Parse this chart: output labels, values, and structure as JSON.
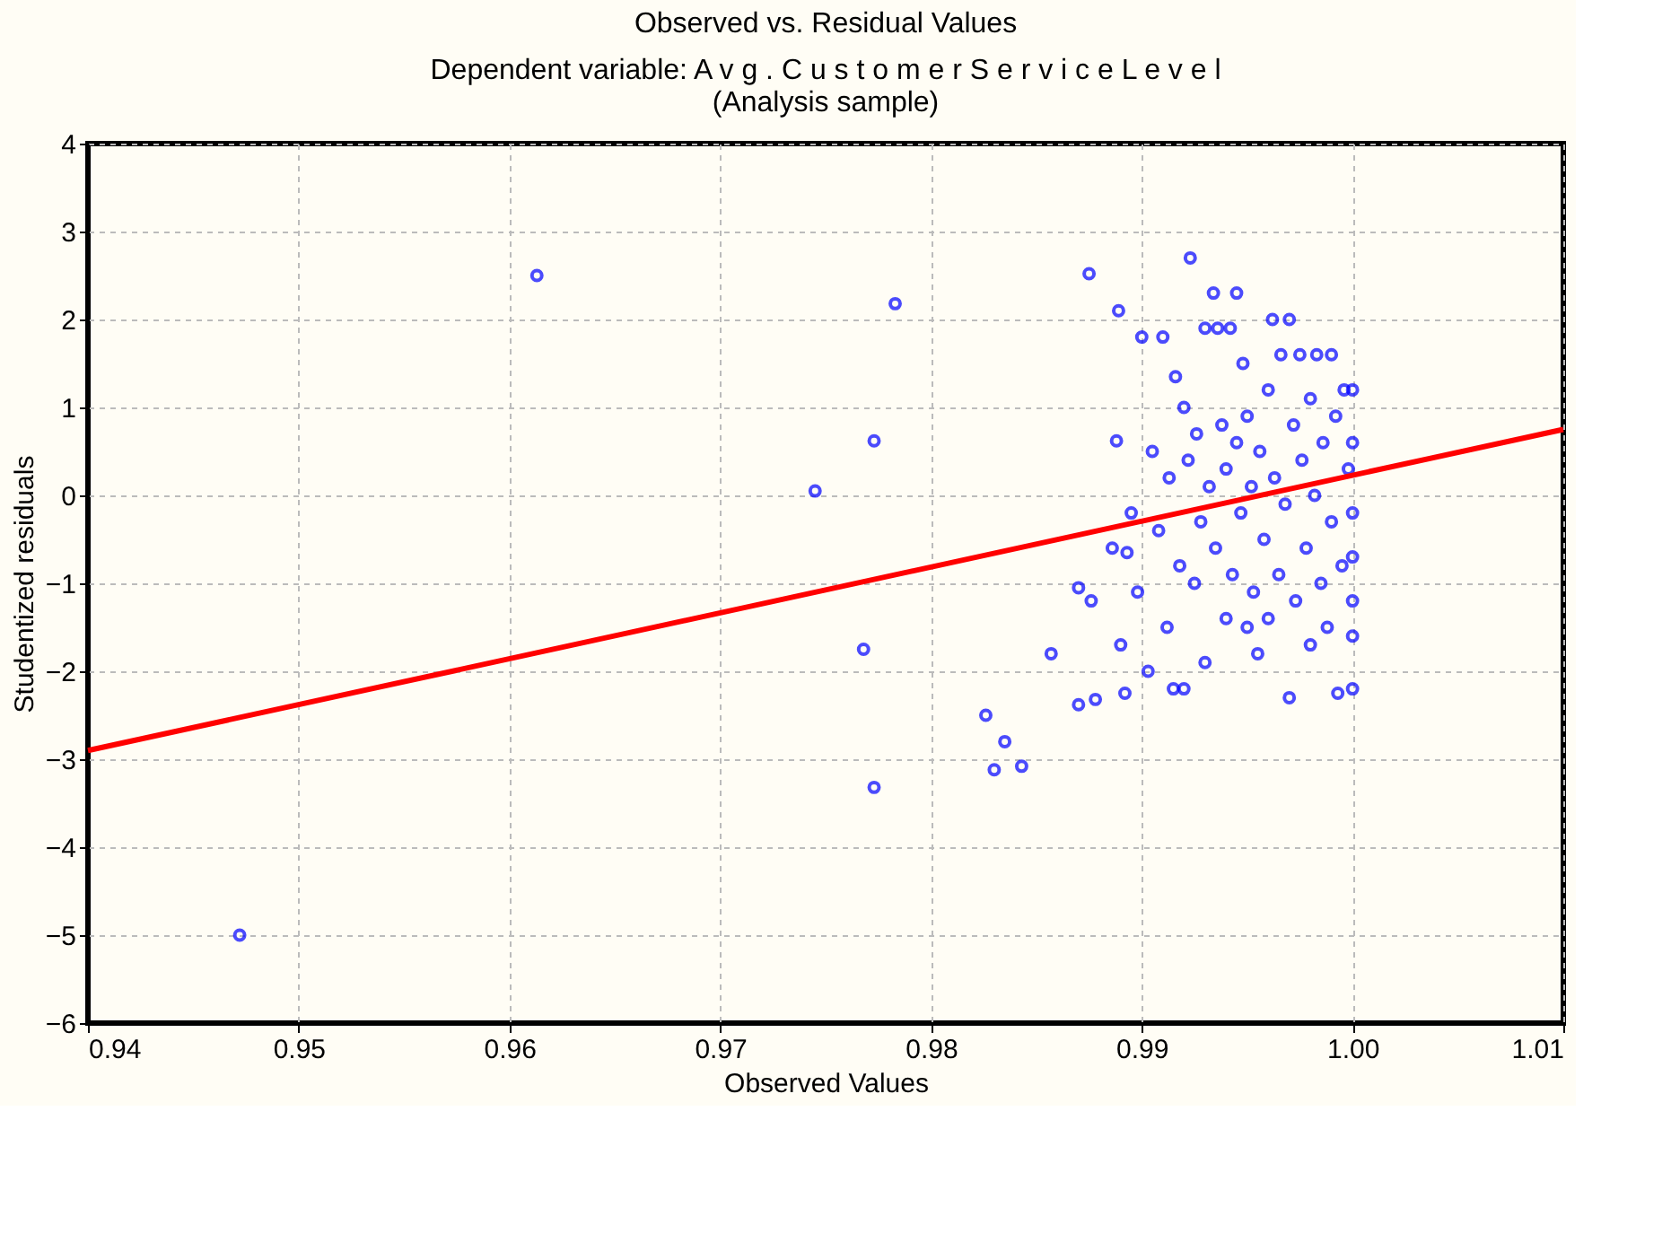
{
  "chart_data": {
    "type": "scatter",
    "title": "Observed vs. Residual Values",
    "subtitle": [
      "Dependent variable: A v g .  C u s t o m e r  S e r v i c e  L e v e l",
      "(Analysis sample)"
    ],
    "xlabel": "Observed Values",
    "ylabel": "Studentized residuals",
    "xlim": [
      0.94,
      1.01
    ],
    "xticks": [
      {
        "value": 0.94,
        "label": "0.94"
      },
      {
        "value": 0.95,
        "label": "0.95"
      },
      {
        "value": 0.96,
        "label": "0.96"
      },
      {
        "value": 0.97,
        "label": "0.97"
      },
      {
        "value": 0.98,
        "label": "0.98"
      },
      {
        "value": 0.99,
        "label": "0.99"
      },
      {
        "value": 1.0,
        "label": "1.00"
      },
      {
        "value": 1.01,
        "label": "1.01"
      }
    ],
    "ylim": [
      -6,
      4
    ],
    "yticks": [
      -6,
      -5,
      -4,
      -3,
      -2,
      -1,
      0,
      1,
      2,
      3,
      4
    ],
    "grid": true,
    "series": [
      {
        "color": "#0000ff",
        "marker": "circle",
        "x": [
          0.9472,
          0.9613,
          0.9745,
          0.9768,
          0.9773,
          0.9773,
          0.9783,
          0.9826,
          0.983,
          0.9835,
          0.9843,
          0.9857,
          0.987,
          0.987,
          0.9875,
          0.9876,
          0.9878,
          0.9886,
          0.9888,
          0.9889,
          0.989,
          0.9892,
          0.9893,
          0.9895,
          0.9898,
          0.99,
          0.9903,
          0.9905,
          0.9908,
          0.991,
          0.9912,
          0.9913,
          0.9915,
          0.9916,
          0.9918,
          0.992,
          0.992,
          0.9922,
          0.9923,
          0.9925,
          0.9926,
          0.9928,
          0.993,
          0.993,
          0.9932,
          0.9934,
          0.9935,
          0.9936,
          0.9938,
          0.994,
          0.994,
          0.9942,
          0.9943,
          0.9945,
          0.9945,
          0.9947,
          0.9948,
          0.995,
          0.995,
          0.9952,
          0.9953,
          0.9955,
          0.9956,
          0.9958,
          0.996,
          0.996,
          0.9962,
          0.9963,
          0.9965,
          0.9966,
          0.9968,
          0.997,
          0.997,
          0.9972,
          0.9973,
          0.9975,
          0.9976,
          0.9978,
          0.998,
          0.998,
          0.9982,
          0.9983,
          0.9985,
          0.9986,
          0.9988,
          0.999,
          0.999,
          0.9992,
          0.9993,
          0.9995,
          0.9996,
          0.9998,
          1.0,
          1.0,
          1.0,
          1.0,
          1.0,
          1.0,
          1.0
        ],
        "values": [
          -5.0,
          2.5,
          0.05,
          -1.75,
          0.62,
          -3.32,
          2.18,
          -2.5,
          -3.12,
          -2.8,
          -3.08,
          -1.8,
          -2.38,
          -1.05,
          2.52,
          -1.2,
          -2.32,
          -0.6,
          0.62,
          2.1,
          -1.7,
          -2.25,
          -0.65,
          -0.2,
          -1.1,
          1.8,
          -2.0,
          0.5,
          -0.4,
          1.8,
          -1.5,
          0.2,
          -2.2,
          1.35,
          -0.8,
          1.0,
          -2.2,
          0.4,
          2.7,
          -1.0,
          0.7,
          -0.3,
          -1.9,
          1.9,
          0.1,
          2.3,
          -0.6,
          1.9,
          0.8,
          -1.4,
          0.3,
          1.9,
          -0.9,
          2.3,
          0.6,
          -0.2,
          1.5,
          -1.5,
          0.9,
          0.1,
          -1.1,
          -1.8,
          0.5,
          -0.5,
          1.2,
          -1.4,
          2.0,
          0.2,
          -0.9,
          1.6,
          -0.1,
          2.0,
          -2.3,
          0.8,
          -1.2,
          1.6,
          0.4,
          -0.6,
          1.1,
          -1.7,
          0.0,
          1.6,
          -1.0,
          0.6,
          -1.5,
          1.6,
          -0.3,
          0.9,
          -2.25,
          -0.8,
          1.2,
          0.3,
          -2.2,
          1.2,
          0.6,
          -0.2,
          -0.7,
          -1.2,
          -1.6
        ]
      },
      {
        "type": "line",
        "color": "#ff0000",
        "x": [
          0.94,
          1.01
        ],
        "values": [
          -2.9,
          0.75
        ]
      }
    ]
  }
}
